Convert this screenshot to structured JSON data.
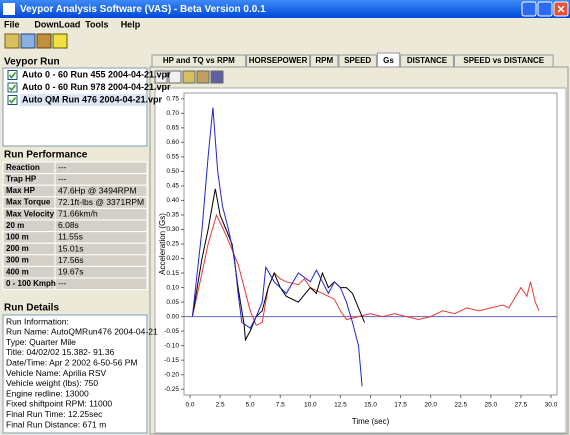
{
  "window": {
    "title": "Veypor Analysis Software (VAS) - Beta Version 0.0.1"
  },
  "menu": [
    "File",
    "DownLoad",
    "Tools",
    "Help"
  ],
  "runs": {
    "title": "Veypor Run",
    "items": [
      "Auto 0 - 60 Run 455 2004-04-21.vpr",
      "Auto 0 - 60 Run 978 2004-04-21.vpr",
      "Auto QM Run 476 2004-04-21.vpr"
    ]
  },
  "performance": {
    "title": "Run Performance",
    "rows": [
      [
        "Reaction",
        "---"
      ],
      [
        "Trap HP",
        "---"
      ],
      [
        "Max HP",
        "47.6Hp @ 3494RPM"
      ],
      [
        "Max Torque",
        "72.1ft-lbs @ 3371RPM"
      ],
      [
        "Max Velocity",
        "71.66km/h"
      ],
      [
        "20 m",
        "6.08s"
      ],
      [
        "100 m",
        "11.55s"
      ],
      [
        "200 m",
        "15.01s"
      ],
      [
        "300 m",
        "17.56s"
      ],
      [
        "400 m",
        "19.67s"
      ],
      [
        "0 - 100 Kmph",
        "---"
      ]
    ]
  },
  "details": {
    "title": "Run Details",
    "lines": [
      "Run Information:",
      "Run Name: AutoQMRun476 2004-04-21",
      "Type: Quarter Mile",
      "Title: 04/02/02 15.382- 91.36",
      "Date/Time: Apr 2 2002 6-50-56 PM",
      "Vehicle Name: Aprilia RSV",
      "Vehicle weight (lbs): 750",
      "Engine redline: 13000",
      "Fixed shiftpoint RPM: 11000",
      "Final Run Time: 12.25sec",
      "Final Run Distance: 671 m"
    ]
  },
  "tabs": [
    "HP and TQ vs RPM",
    "HORSEPOWER",
    "RPM",
    "SPEED",
    "Gs",
    "DISTANCE",
    "SPEED vs DISTANCE"
  ],
  "active_tab": 4,
  "chart_data": {
    "type": "line",
    "xlabel": "Time (sec)",
    "ylabel": "Acceleration (Gs)",
    "xlim": [
      -0.5,
      30.5
    ],
    "ylim": [
      -0.27,
      0.77
    ],
    "grid": false,
    "xticks": [
      {
        "value": 0,
        "label": "0.0"
      },
      {
        "value": 2.5,
        "label": "2.5"
      },
      {
        "value": 5,
        "label": "5.0"
      },
      {
        "value": 7.5,
        "label": "7.5"
      },
      {
        "value": 10,
        "label": "10.0"
      },
      {
        "value": 12.5,
        "label": "12.5"
      },
      {
        "value": 15,
        "label": "15.0"
      },
      {
        "value": 17.5,
        "label": "17.5"
      },
      {
        "value": 20,
        "label": "20.0"
      },
      {
        "value": 22.5,
        "label": "22.5"
      },
      {
        "value": 25,
        "label": "25.0"
      },
      {
        "value": 27.5,
        "label": "27.5"
      },
      {
        "value": 30,
        "label": "30.0"
      }
    ],
    "yticks": [
      {
        "value": 0.75,
        "label": "0.75"
      },
      {
        "value": 0.7,
        "label": "0.70"
      },
      {
        "value": 0.65,
        "label": "0.65"
      },
      {
        "value": 0.6,
        "label": "0.60"
      },
      {
        "value": 0.55,
        "label": "0.55"
      },
      {
        "value": 0.5,
        "label": "0.50"
      },
      {
        "value": 0.45,
        "label": "0.45"
      },
      {
        "value": 0.4,
        "label": "0.40"
      },
      {
        "value": 0.35,
        "label": "0.35"
      },
      {
        "value": 0.3,
        "label": "0.30"
      },
      {
        "value": 0.25,
        "label": "0.25"
      },
      {
        "value": 0.2,
        "label": "0.20"
      },
      {
        "value": 0.15,
        "label": "0.15"
      },
      {
        "value": 0.1,
        "label": "0.10"
      },
      {
        "value": 0.05,
        "label": "0.05"
      },
      {
        "value": 0,
        "label": "0.00"
      },
      {
        "value": -0.05,
        "label": "-0.05"
      },
      {
        "value": -0.1,
        "label": "-0.10"
      },
      {
        "value": -0.15,
        "label": "-0.15"
      },
      {
        "value": -0.2,
        "label": "-0.20"
      },
      {
        "value": -0.25,
        "label": "-0.25"
      }
    ],
    "series": [
      {
        "color": "#e83838",
        "x": [
          0.2,
          1,
          1.5,
          2.2,
          3,
          3.5,
          4,
          4.5,
          5,
          5.5,
          6,
          6.5,
          7,
          7.5,
          8,
          9,
          9.5,
          10,
          11,
          12,
          12.5,
          13,
          14,
          15,
          16,
          17,
          18,
          19,
          20,
          21,
          22,
          23,
          24,
          25,
          26,
          26.5,
          27.5,
          28,
          28.3,
          28.7,
          29
        ],
        "values": [
          0,
          0.15,
          0.25,
          0.35,
          0.28,
          0.23,
          0.18,
          0.1,
          0.02,
          -0.03,
          -0.02,
          0.1,
          0.15,
          0.13,
          0.12,
          0.11,
          0.13,
          0.1,
          0.08,
          0.06,
          0.02,
          -0.01,
          0,
          0.01,
          0,
          0.01,
          0,
          -0.01,
          0,
          0.02,
          0.01,
          0.03,
          0.02,
          0.03,
          0.04,
          0.03,
          0.1,
          0.07,
          0.12,
          0.05,
          0.02
        ]
      },
      {
        "color": "#000000",
        "x": [
          0.2,
          1,
          1.5,
          2.1,
          2.5,
          3,
          3.5,
          4,
          4.5,
          4.6,
          5,
          5.5,
          6,
          6.5,
          7,
          7.5,
          8,
          9,
          10,
          10.5,
          11,
          11.5,
          12,
          12.5,
          13,
          13.5,
          14,
          14.3,
          14.5
        ],
        "values": [
          0,
          0.2,
          0.3,
          0.44,
          0.35,
          0.3,
          0.25,
          0.1,
          -0.03,
          -0.08,
          -0.05,
          0,
          0.02,
          0.1,
          0.15,
          0.1,
          0.07,
          0.05,
          0.1,
          0.08,
          0.15,
          0.1,
          0.12,
          0.1,
          0.1,
          0.08,
          0.03,
          0,
          -0.02
        ]
      },
      {
        "color": "#2424d0",
        "x": [
          0.2,
          1,
          1.5,
          1.9,
          2.3,
          2.7,
          3.2,
          3.7,
          4,
          4.3,
          5,
          5.5,
          6,
          6.3,
          7,
          8,
          9,
          10,
          10.5,
          11,
          11.5,
          12,
          12.5,
          13,
          13.5,
          14,
          14.3
        ],
        "values": [
          0,
          0.3,
          0.55,
          0.72,
          0.5,
          0.38,
          0.3,
          0.2,
          0.08,
          -0.02,
          -0.04,
          0,
          0.05,
          0.17,
          0.12,
          0.08,
          0.15,
          0.12,
          0.16,
          0.12,
          0.08,
          0.12,
          0.1,
          0.05,
          -0.02,
          -0.1,
          -0.24
        ]
      }
    ]
  }
}
